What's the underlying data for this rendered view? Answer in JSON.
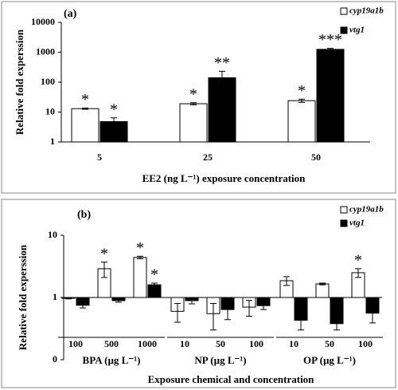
{
  "chart_data": [
    {
      "type": "bar",
      "title": "(a)",
      "y_label": "Relative fold experssion",
      "x_label": "EE2 (ng L⁻¹) exposure concentration",
      "log_scale": true,
      "ylim": [
        1,
        10000
      ],
      "yticks": [
        1,
        10,
        100,
        1000,
        10000
      ],
      "categories": [
        "5",
        "25",
        "50"
      ],
      "series": [
        {
          "name": "cyp19a1b",
          "color": "#ffffff",
          "values": [
            13,
            19,
            24
          ],
          "errors": [
            0.6,
            1.5,
            3
          ],
          "labels": [
            "*",
            "*",
            "*"
          ]
        },
        {
          "name": "vtg1",
          "color": "#000000",
          "values": [
            4.8,
            140,
            1250
          ],
          "errors": [
            1.6,
            90,
            100
          ],
          "labels": [
            "*",
            "**",
            "***"
          ]
        }
      ]
    },
    {
      "type": "bar",
      "title": "(b)",
      "y_label": "Relative fold experssion",
      "x_label": "Exposure chemical and concentration",
      "log_scale": true,
      "ylim": [
        0.1,
        10
      ],
      "yticks": [
        {
          "value": 0.1,
          "label": "0"
        },
        1,
        10
      ],
      "categories": [
        "100",
        "500",
        "1000",
        "10",
        "50",
        "100",
        "10",
        "50",
        "100"
      ],
      "groups": [
        "BPA (µg L⁻¹)",
        "NP (µg L⁻¹)",
        "OP (µg L⁻¹)"
      ],
      "series": [
        {
          "name": "cyp19a1b",
          "color": "#ffffff",
          "values": [
            0.97,
            2.9,
            4.4,
            0.6,
            0.55,
            0.7,
            1.86,
            1.65,
            2.5
          ],
          "errors": [
            0.02,
            0.8,
            0.2,
            0.2,
            0.25,
            0.2,
            0.3,
            0.05,
            0.4
          ],
          "labels": [
            null,
            "*",
            "*",
            null,
            null,
            null,
            null,
            null,
            "*"
          ]
        },
        {
          "name": "vtg1",
          "color": "#000000",
          "values": [
            0.75,
            0.89,
            1.6,
            0.89,
            0.64,
            0.74,
            0.43,
            0.38,
            0.56
          ],
          "errors": [
            0.07,
            0.05,
            0.1,
            0.1,
            0.2,
            0.1,
            0.13,
            0.08,
            0.17
          ],
          "labels": [
            null,
            null,
            "*",
            null,
            null,
            null,
            null,
            null,
            null
          ]
        }
      ]
    }
  ]
}
